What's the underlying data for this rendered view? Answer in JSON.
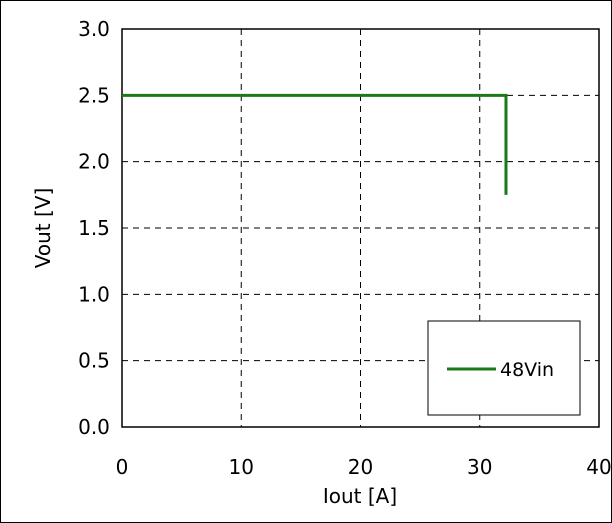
{
  "chart_data": {
    "type": "line",
    "xlabel": "Iout [A]",
    "ylabel": "Vout [V]",
    "xlim": [
      0,
      40
    ],
    "ylim": [
      0.0,
      3.0
    ],
    "x_ticks": [
      "0",
      "10",
      "20",
      "30",
      "40"
    ],
    "y_ticks": [
      "0.0",
      "0.5",
      "1.0",
      "1.5",
      "2.0",
      "2.5",
      "3.0"
    ],
    "grid": true,
    "legend_position": "bottom-right",
    "series": [
      {
        "name": "48Vin",
        "color": "#1a7a1a",
        "x": [
          0,
          32.2,
          32.2
        ],
        "y": [
          2.5,
          2.5,
          1.75
        ]
      }
    ]
  }
}
